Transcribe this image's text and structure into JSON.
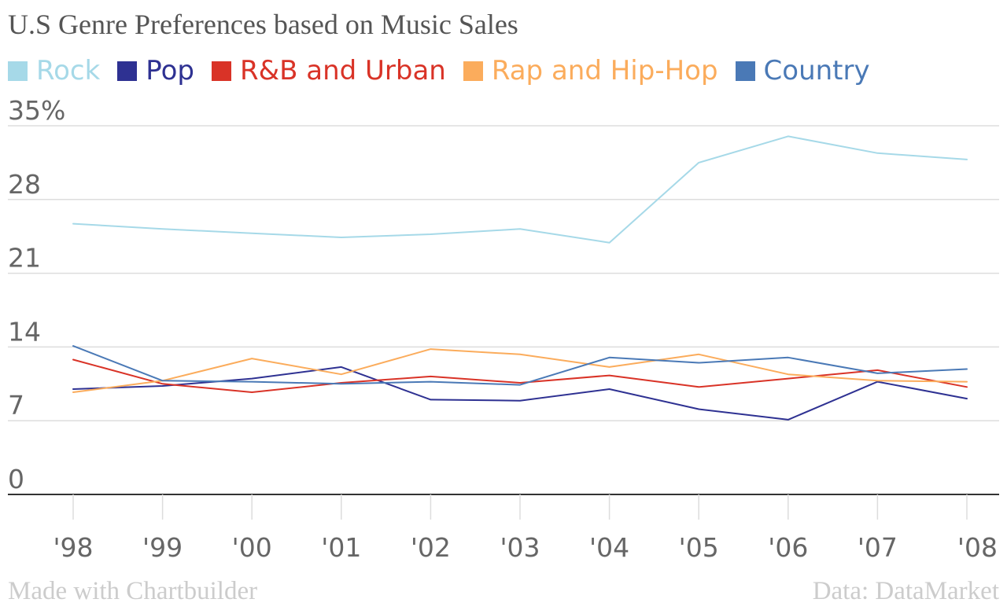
{
  "chart_data": {
    "type": "line",
    "title": "U.S Genre Preferences based on Music Sales",
    "categories": [
      "'98",
      "'99",
      "'00",
      "'01",
      "'02",
      "'03",
      "'04",
      "'05",
      "'06",
      "'07",
      "'08"
    ],
    "y_ticks": [
      "35%",
      "28",
      "21",
      "14",
      "7",
      "0"
    ],
    "ylim": [
      0,
      35
    ],
    "grid": true,
    "legend_position": "top-left",
    "series": [
      {
        "name": "Rock",
        "color": "#a6d9e8",
        "values": [
          25.7,
          25.2,
          24.8,
          24.4,
          24.7,
          25.2,
          23.9,
          31.5,
          34.0,
          32.4,
          31.8
        ]
      },
      {
        "name": "Pop",
        "color": "#2e3192",
        "values": [
          10.0,
          10.3,
          11.0,
          12.1,
          9.0,
          8.9,
          10.0,
          8.1,
          7.1,
          10.7,
          9.1
        ]
      },
      {
        "name": "R&B and Urban",
        "color": "#d93327",
        "values": [
          12.8,
          10.5,
          9.7,
          10.6,
          11.2,
          10.6,
          11.3,
          10.2,
          11.0,
          11.8,
          10.2
        ]
      },
      {
        "name": "Rap and Hip-Hop",
        "color": "#fbac5c",
        "values": [
          9.7,
          10.8,
          12.9,
          11.4,
          13.8,
          13.3,
          12.1,
          13.3,
          11.4,
          10.8,
          10.7
        ]
      },
      {
        "name": "Country",
        "color": "#4a79b6",
        "values": [
          14.1,
          10.8,
          10.7,
          10.5,
          10.7,
          10.4,
          13.0,
          12.5,
          13.0,
          11.5,
          11.9
        ]
      }
    ]
  },
  "footer": {
    "left": "Made with Chartbuilder",
    "right": "Data: DataMarket"
  }
}
